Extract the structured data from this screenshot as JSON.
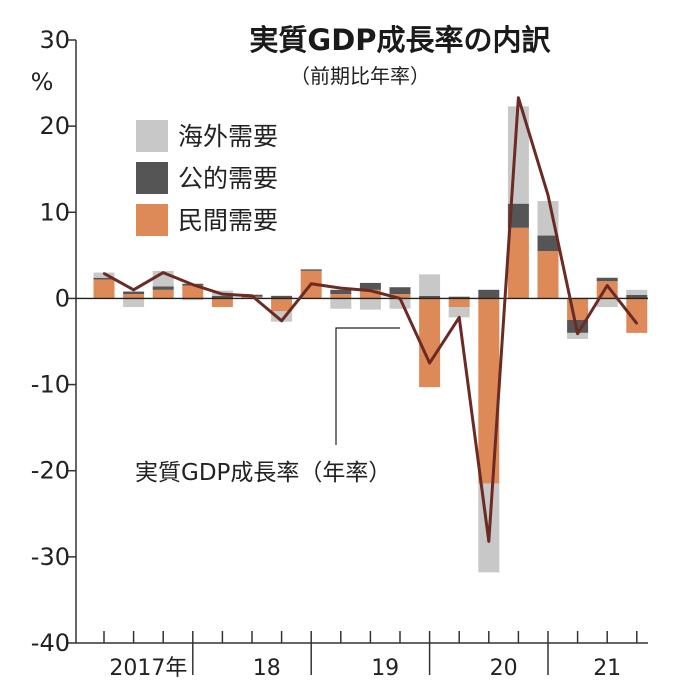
{
  "chart_data": {
    "type": "bar",
    "title": "実質GDP成長率の内訳",
    "subtitle": "（前期比年率）",
    "y_unit": "%",
    "ylim": [
      -40,
      30
    ],
    "yticks": [
      30,
      20,
      10,
      0,
      -10,
      -20,
      -30,
      -40
    ],
    "ytick_labels": [
      "30",
      "20",
      "10",
      "0",
      "-10",
      "-20",
      "-30",
      "-40"
    ],
    "x_year_labels": [
      "2017年",
      "18",
      "19",
      "20",
      "21"
    ],
    "quarters": [
      "2017Q1",
      "2017Q2",
      "2017Q3",
      "2017Q4",
      "2018Q1",
      "2018Q2",
      "2018Q3",
      "2018Q4",
      "2019Q1",
      "2019Q2",
      "2019Q3",
      "2019Q4",
      "2020Q1",
      "2020Q2",
      "2020Q3",
      "2020Q4",
      "2021Q1",
      "2021Q2",
      "2021Q3"
    ],
    "series": [
      {
        "name": "民間需要",
        "color": "#de8a58",
        "values": [
          2.2,
          0.5,
          1.0,
          1.5,
          -1.0,
          0.2,
          -1.5,
          3.2,
          0.5,
          1.0,
          0.5,
          -10.3,
          -1.0,
          -21.5,
          8.2,
          5.5,
          -2.5,
          2.0,
          -4.0
        ]
      },
      {
        "name": "公的需要",
        "color": "#555555",
        "values": [
          0.2,
          0.3,
          0.4,
          0.2,
          0.3,
          0.2,
          0.3,
          0.2,
          0.5,
          0.8,
          0.8,
          0.3,
          0.2,
          1.0,
          2.8,
          1.8,
          -1.5,
          0.4,
          0.4
        ]
      },
      {
        "name": "海外需要",
        "color": "#c8c8c8",
        "values": [
          0.6,
          -1.0,
          1.8,
          -0.2,
          0.6,
          0.1,
          -1.2,
          0.0,
          -1.2,
          -1.3,
          -1.2,
          2.5,
          -1.2,
          -10.3,
          11.3,
          4.0,
          -0.7,
          -1.0,
          0.6
        ]
      }
    ],
    "line": {
      "name": "実質GDP成長率（年率）",
      "color": "#6b2a24",
      "values": [
        2.9,
        1.0,
        3.0,
        1.6,
        0.5,
        0.3,
        -2.6,
        1.7,
        1.2,
        0.9,
        0.0,
        -7.5,
        -2.2,
        -28.2,
        23.3,
        12.0,
        -4.1,
        1.5,
        -2.9
      ]
    },
    "legend": [
      "海外需要",
      "公的需要",
      "民間需要"
    ],
    "legend_position": "top-left",
    "annotation": "実質GDP成長率（年率）"
  }
}
